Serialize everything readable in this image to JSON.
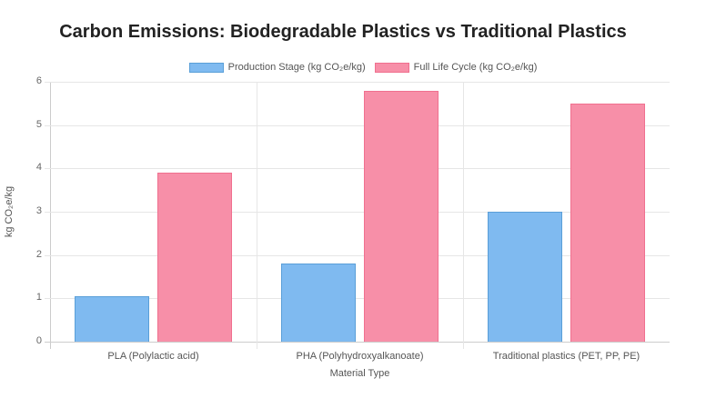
{
  "chart_data": {
    "type": "bar",
    "title": "Carbon Emissions: Biodegradable Plastics vs Traditional Plastics",
    "categories": [
      "PLA (Polylactic acid)",
      "PHA (Polyhydroxyalkanoate)",
      "Traditional plastics (PET, PP, PE)"
    ],
    "series": [
      {
        "name": "Production Stage (kg CO₂e/kg)",
        "values": [
          1.05,
          1.8,
          3.0
        ],
        "color": "#7fbaf0",
        "border": "#5a9fd8"
      },
      {
        "name": "Full Life Cycle (kg CO₂e/kg)",
        "values": [
          3.9,
          5.8,
          5.5
        ],
        "color": "#f78fa8",
        "border": "#f0708f"
      }
    ],
    "xlabel": "Material Type",
    "ylabel": "kg CO₂e/kg",
    "ylim": [
      0,
      6
    ],
    "yticks": [
      "0",
      "1",
      "2",
      "3",
      "4",
      "5",
      "6"
    ],
    "grid": true,
    "legend_position": "top"
  }
}
